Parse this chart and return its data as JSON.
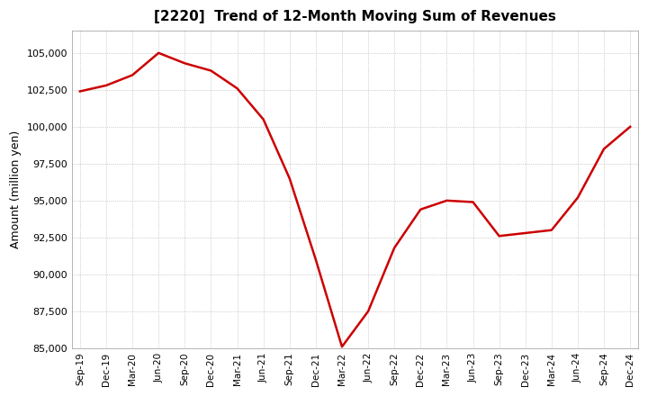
{
  "title": "[2220]  Trend of 12-Month Moving Sum of Revenues",
  "ylabel": "Amount (million yen)",
  "ylim": [
    85000,
    106500
  ],
  "yticks": [
    85000,
    87500,
    90000,
    92500,
    95000,
    97500,
    100000,
    102500,
    105000
  ],
  "line_color": "#cc0000",
  "background_color": "#ffffff",
  "plot_bg_color": "#ffffff",
  "grid_color": "#aaaaaa",
  "x_labels": [
    "Sep-19",
    "Dec-19",
    "Mar-20",
    "Jun-20",
    "Sep-20",
    "Dec-20",
    "Mar-21",
    "Jun-21",
    "Sep-21",
    "Dec-21",
    "Mar-22",
    "Jun-22",
    "Sep-22",
    "Dec-22",
    "Mar-23",
    "Jun-23",
    "Sep-23",
    "Dec-23",
    "Mar-24",
    "Jun-24",
    "Sep-24",
    "Dec-24"
  ],
  "values": [
    102400,
    102800,
    103500,
    105000,
    104300,
    103800,
    102600,
    100500,
    96500,
    91000,
    85100,
    87500,
    91800,
    94400,
    95000,
    94900,
    92600,
    92800,
    93000,
    95200,
    98500,
    100000
  ]
}
